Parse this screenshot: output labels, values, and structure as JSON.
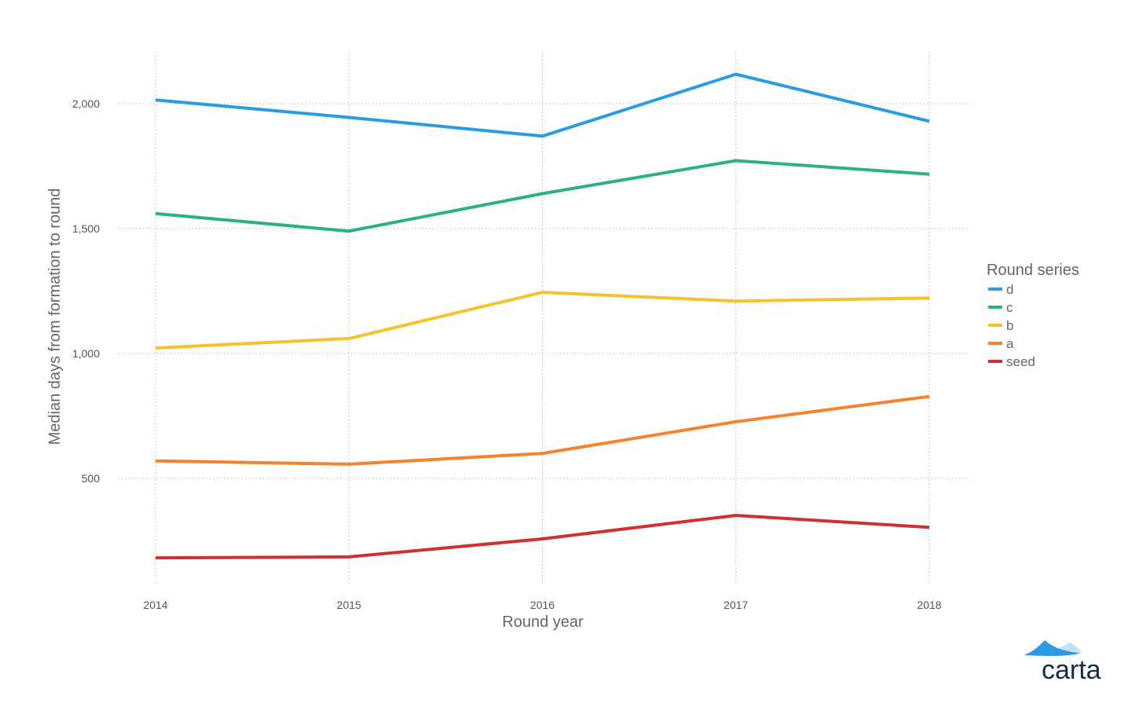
{
  "chart_data": {
    "type": "line",
    "title": "",
    "xlabel": "Round year",
    "ylabel": "Median days from formation to round",
    "x": [
      "2014",
      "2015",
      "2016",
      "2017",
      "2018"
    ],
    "yticks": [
      "500",
      "1,000",
      "1,500",
      "2,000"
    ],
    "ytick_values": [
      500,
      1000,
      1500,
      2000
    ],
    "ylim": [
      100,
      2200
    ],
    "grid": true,
    "legend_title": "Round series",
    "legend_position": "right",
    "series": [
      {
        "name": "d",
        "color": "#2B9BE3",
        "values": [
          2015,
          1945,
          1870,
          2118,
          1930
        ]
      },
      {
        "name": "c",
        "color": "#2BB37E",
        "values": [
          1560,
          1490,
          1640,
          1772,
          1718
        ]
      },
      {
        "name": "b",
        "color": "#F5C22E",
        "values": [
          1022,
          1060,
          1245,
          1210,
          1222
        ]
      },
      {
        "name": "a",
        "color": "#F4822E",
        "values": [
          570,
          557,
          600,
          727,
          828
        ]
      },
      {
        "name": "seed",
        "color": "#CF3030",
        "values": [
          182,
          186,
          258,
          352,
          304
        ]
      }
    ]
  },
  "logo": {
    "text": "carta",
    "colors": [
      "#2B9BE3",
      "#BFE3F5"
    ]
  }
}
